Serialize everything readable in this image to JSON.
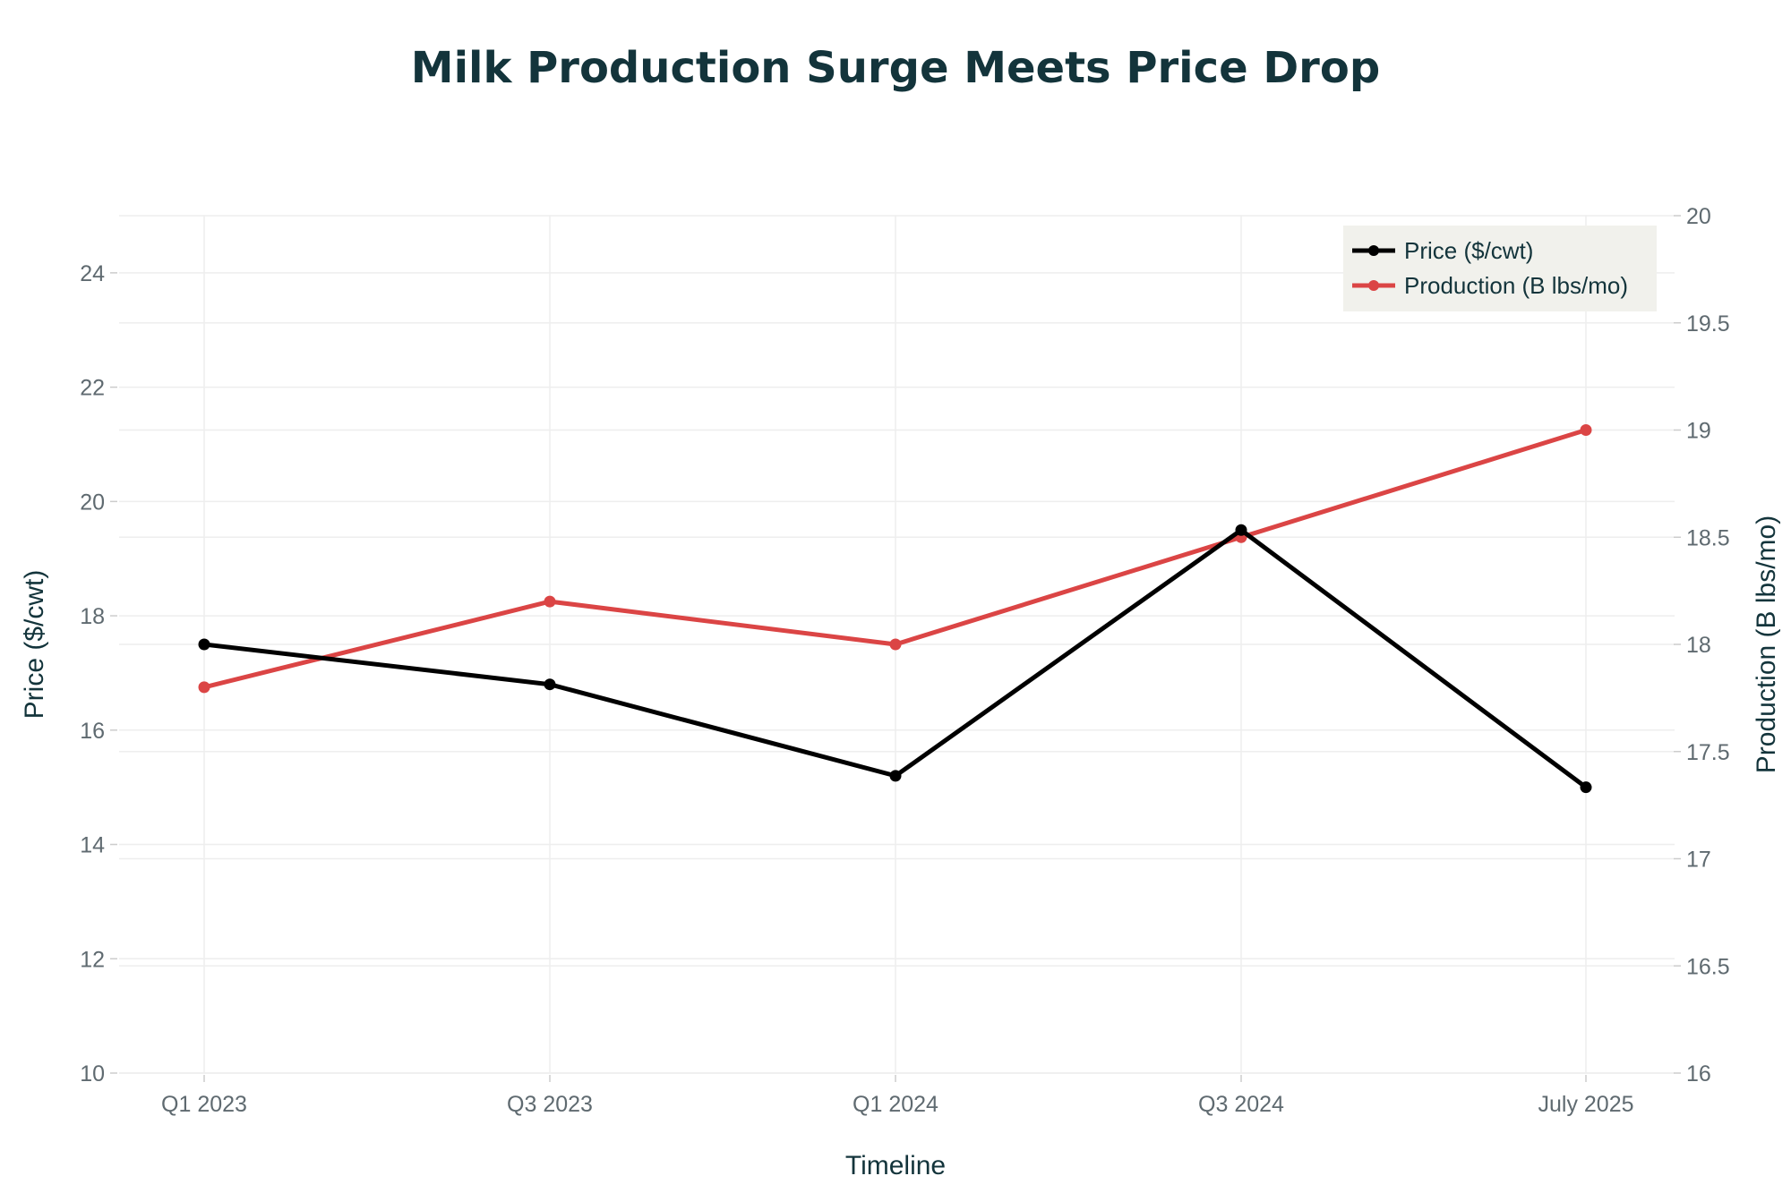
{
  "chart_data": {
    "type": "line",
    "title": "Milk Production Surge Meets Price Drop",
    "xlabel": "Timeline",
    "ylabel": "Price ($/cwt)",
    "y2label": "Production (B lbs/mo)",
    "categories": [
      "Q1 2023",
      "Q3 2023",
      "Q1 2024",
      "Q3 2024",
      "July 2025"
    ],
    "ylim": [
      10,
      25
    ],
    "y2lim": [
      16,
      20
    ],
    "yticks": [
      10,
      12,
      14,
      16,
      18,
      20,
      22,
      24
    ],
    "y2ticks": [
      16,
      16.5,
      17,
      17.5,
      18,
      18.5,
      19,
      19.5,
      20
    ],
    "grid": true,
    "legend_position": "top-right",
    "series": [
      {
        "name": "Price ($/cwt)",
        "axis": "left",
        "color": "#000000",
        "values": [
          17.5,
          16.8,
          15.2,
          19.5,
          15.0
        ]
      },
      {
        "name": "Production (B lbs/mo)",
        "axis": "right",
        "color": "#db4545",
        "values": [
          17.8,
          18.2,
          18.0,
          18.5,
          19.0
        ]
      }
    ]
  },
  "colors": {
    "title": "#13343b",
    "tick": "#5f6a70",
    "grid": "#eeeeee",
    "legend_bg": "#f1f1ec"
  }
}
